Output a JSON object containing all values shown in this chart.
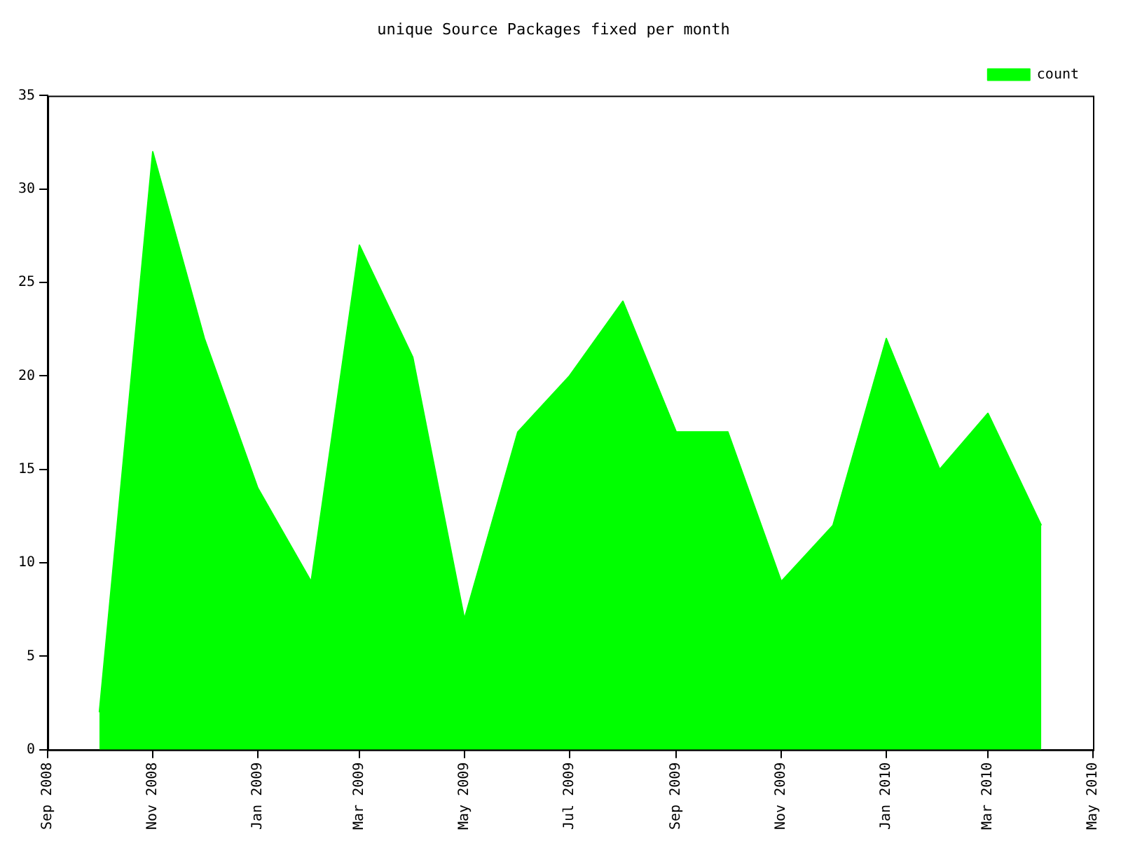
{
  "chart_data": {
    "type": "area",
    "title": "unique Source Packages fixed per month",
    "x": [
      "2008-10-01",
      "2008-11-01",
      "2008-12-01",
      "2009-01-01",
      "2009-02-01",
      "2009-03-01",
      "2009-04-01",
      "2009-05-01",
      "2009-06-01",
      "2009-07-01",
      "2009-08-01",
      "2009-09-01",
      "2009-10-01",
      "2009-11-01",
      "2009-12-01",
      "2010-01-01",
      "2010-02-01",
      "2010-03-01",
      "2010-04-01"
    ],
    "series": [
      {
        "name": "count",
        "color": "#00ff00",
        "values": [
          2,
          32,
          22,
          14,
          9,
          27,
          21,
          7,
          17,
          20,
          24,
          17,
          17,
          9,
          12,
          22,
          15,
          18,
          12
        ]
      }
    ],
    "xlim": [
      "2008-09-01",
      "2010-05-01"
    ],
    "xticks": [
      {
        "value": "2008-09-01",
        "label": "Sep 2008"
      },
      {
        "value": "2008-11-01",
        "label": "Nov 2008"
      },
      {
        "value": "2009-01-01",
        "label": "Jan 2009"
      },
      {
        "value": "2009-03-01",
        "label": "Mar 2009"
      },
      {
        "value": "2009-05-01",
        "label": "May 2009"
      },
      {
        "value": "2009-07-01",
        "label": "Jul 2009"
      },
      {
        "value": "2009-09-01",
        "label": "Sep 2009"
      },
      {
        "value": "2009-11-01",
        "label": "Nov 2009"
      },
      {
        "value": "2010-01-01",
        "label": "Jan 2010"
      },
      {
        "value": "2010-03-01",
        "label": "Mar 2010"
      },
      {
        "value": "2010-05-01",
        "label": "May 2010"
      }
    ],
    "ylim": [
      0,
      35
    ],
    "yticks": [
      0,
      5,
      10,
      15,
      20,
      25,
      30,
      35
    ],
    "grid": false,
    "legend": "top right"
  }
}
